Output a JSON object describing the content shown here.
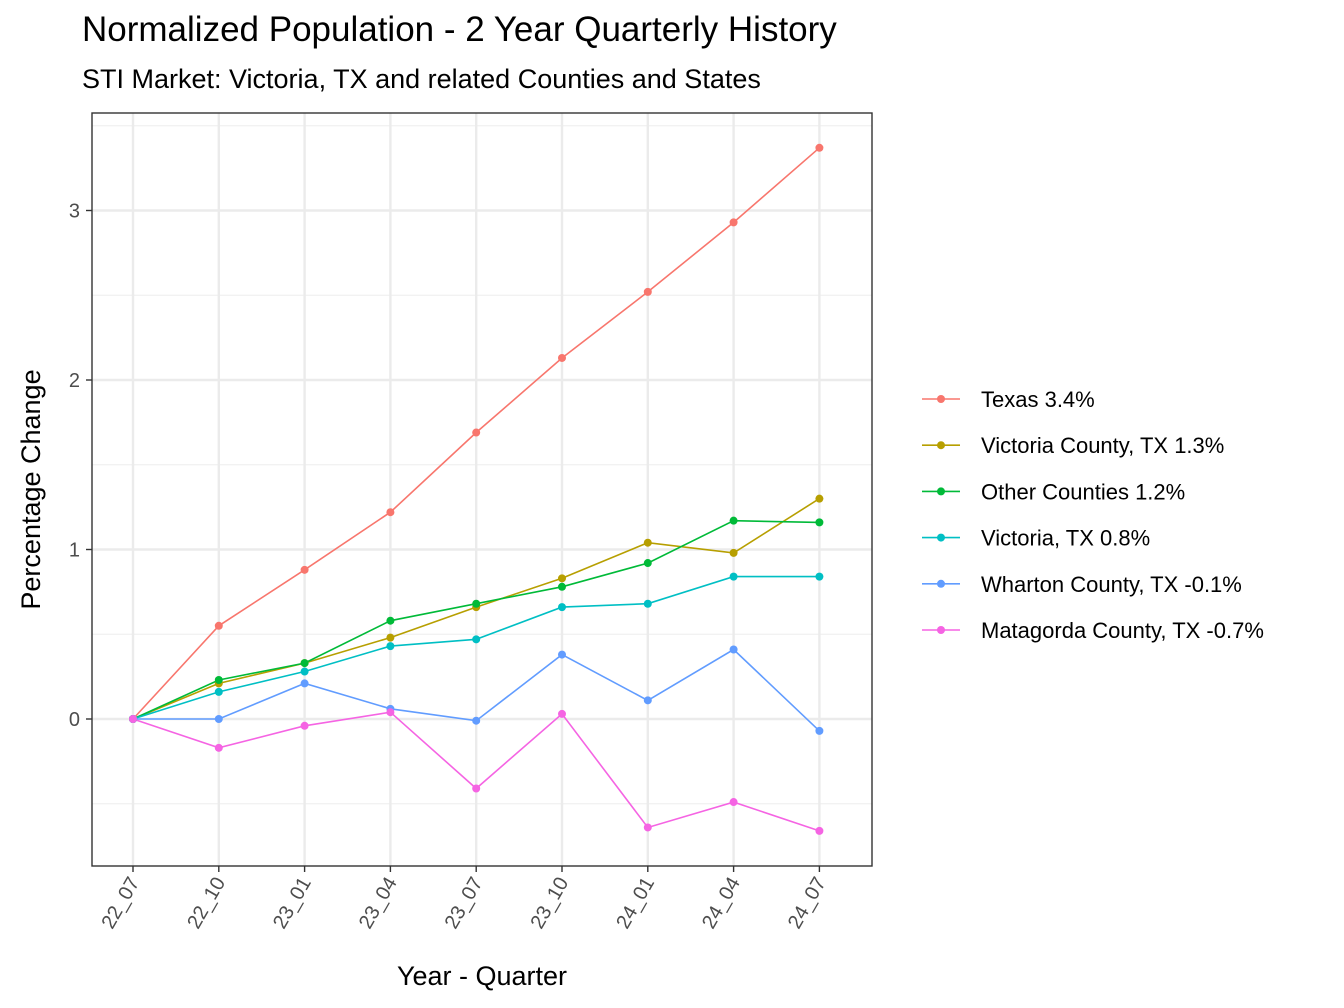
{
  "chart_data": {
    "type": "line",
    "title": "Normalized Population - 2 Year Quarterly History",
    "subtitle": "STI Market: Victoria, TX and related Counties and States",
    "xlabel": "Year - Quarter",
    "ylabel": "Percentage Change",
    "categories": [
      "22_07",
      "22_10",
      "23_01",
      "23_04",
      "23_07",
      "23_10",
      "24_01",
      "24_04",
      "24_07"
    ],
    "ylim": [
      -0.87,
      3.5
    ],
    "yticks": [
      0,
      1,
      2,
      3
    ],
    "grid": true,
    "legend_position": "right",
    "series": [
      {
        "name": "Texas 3.4%",
        "color": "#F8766D",
        "values": [
          0,
          0.55,
          0.88,
          1.22,
          1.69,
          2.13,
          2.52,
          2.93,
          3.37
        ]
      },
      {
        "name": "Victoria County, TX 1.3%",
        "color": "#B79F00",
        "values": [
          0,
          0.21,
          0.33,
          0.48,
          0.66,
          0.83,
          1.04,
          0.98,
          1.3
        ]
      },
      {
        "name": "Other Counties 1.2%",
        "color": "#00BA38",
        "values": [
          0,
          0.23,
          0.33,
          0.58,
          0.68,
          0.78,
          0.92,
          1.17,
          1.16
        ]
      },
      {
        "name": "Victoria, TX 0.8%",
        "color": "#00BFC4",
        "values": [
          0,
          0.16,
          0.28,
          0.43,
          0.47,
          0.66,
          0.68,
          0.84,
          0.84
        ]
      },
      {
        "name": "Wharton County, TX -0.1%",
        "color": "#619CFF",
        "values": [
          0,
          0.0,
          0.21,
          0.06,
          -0.01,
          0.38,
          0.11,
          0.41,
          -0.07
        ]
      },
      {
        "name": "Matagorda County, TX -0.7%",
        "color": "#F564E3",
        "values": [
          0,
          -0.17,
          -0.04,
          0.04,
          -0.41,
          0.03,
          -0.64,
          -0.49,
          -0.66
        ]
      }
    ]
  }
}
